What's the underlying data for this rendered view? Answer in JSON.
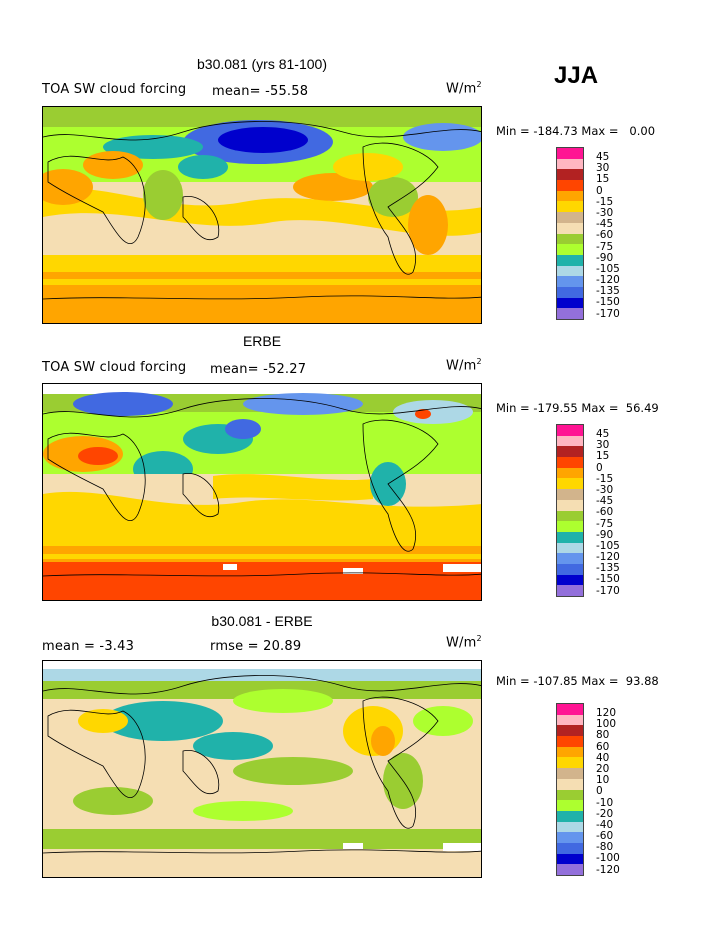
{
  "season": "JJA",
  "panels": [
    {
      "title": "b30.081 (yrs 81-100)",
      "left_label": "TOA SW cloud forcing",
      "mean_label": "mean= -55.58",
      "unit": "W/m",
      "unit_sup": "2",
      "minmax": "Min = -184.73 Max =   0.00",
      "colorbar_labels": [
        "45",
        "30",
        "15",
        "0",
        "-15",
        "-30",
        "-45",
        "-60",
        "-75",
        "-90",
        "-105",
        "-120",
        "-135",
        "-150",
        "-170"
      ],
      "colorbar_colors": [
        "#ff1493",
        "#ffb6c1",
        "#b22222",
        "#ff4500",
        "#ffa500",
        "#ffd700",
        "#d2b48c",
        "#f5deb3",
        "#9acd32",
        "#adff2f",
        "#20b2aa",
        "#add8e6",
        "#6495ed",
        "#4169e1",
        "#0000cd",
        "#9370db"
      ]
    },
    {
      "title": "ERBE",
      "left_label": "TOA SW cloud forcing",
      "mean_label": "mean= -52.27",
      "unit": "W/m",
      "unit_sup": "2",
      "minmax": "Min = -179.55 Max =  56.49",
      "colorbar_labels": [
        "45",
        "30",
        "15",
        "0",
        "-15",
        "-30",
        "-45",
        "-60",
        "-75",
        "-90",
        "-105",
        "-120",
        "-135",
        "-150",
        "-170"
      ],
      "colorbar_colors": [
        "#ff1493",
        "#ffb6c1",
        "#b22222",
        "#ff4500",
        "#ffa500",
        "#ffd700",
        "#d2b48c",
        "#f5deb3",
        "#9acd32",
        "#adff2f",
        "#20b2aa",
        "#add8e6",
        "#6495ed",
        "#4169e1",
        "#0000cd",
        "#9370db"
      ]
    },
    {
      "title": "b30.081 - ERBE",
      "left_label": "mean =  -3.43",
      "mean_label": "rmse =  20.89",
      "unit": "W/m",
      "unit_sup": "2",
      "minmax": "Min = -107.85 Max =  93.88",
      "colorbar_labels": [
        "120",
        "100",
        "80",
        "60",
        "40",
        "20",
        "10",
        "0",
        "-10",
        "-20",
        "-40",
        "-60",
        "-80",
        "-100",
        "-120"
      ],
      "colorbar_colors": [
        "#ff1493",
        "#ffb6c1",
        "#b22222",
        "#ff4500",
        "#ffa500",
        "#ffd700",
        "#d2b48c",
        "#f5deb3",
        "#9acd32",
        "#adff2f",
        "#20b2aa",
        "#add8e6",
        "#6495ed",
        "#4169e1",
        "#0000cd",
        "#9370db"
      ]
    }
  ]
}
